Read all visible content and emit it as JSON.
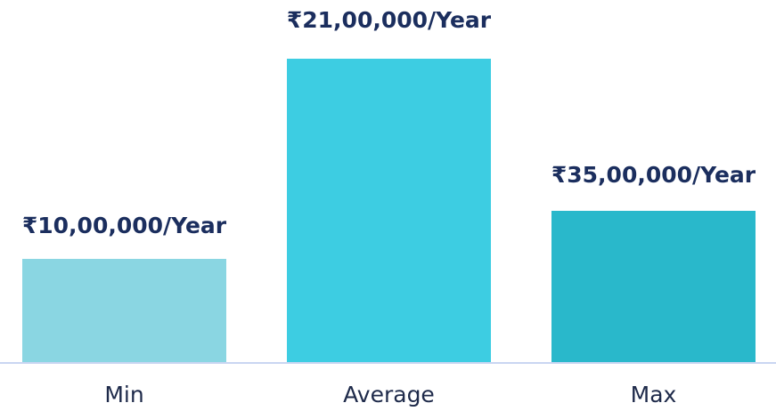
{
  "chart_data": {
    "type": "bar",
    "categories": [
      "Min",
      "Average",
      "Max"
    ],
    "values": [
      1000000,
      2100000,
      3500000
    ],
    "value_labels": [
      "₹10,00,000/Year",
      "₹21,00,000/Year",
      "₹35,00,000/Year"
    ],
    "bar_colors": [
      "#8ad6e2",
      "#3dcde2",
      "#29b8cb"
    ],
    "label_color": "#1b2e5e",
    "category_color": "#1e2a4a",
    "baseline_color": "#c9d6f2",
    "grid": false,
    "legend": "none"
  }
}
